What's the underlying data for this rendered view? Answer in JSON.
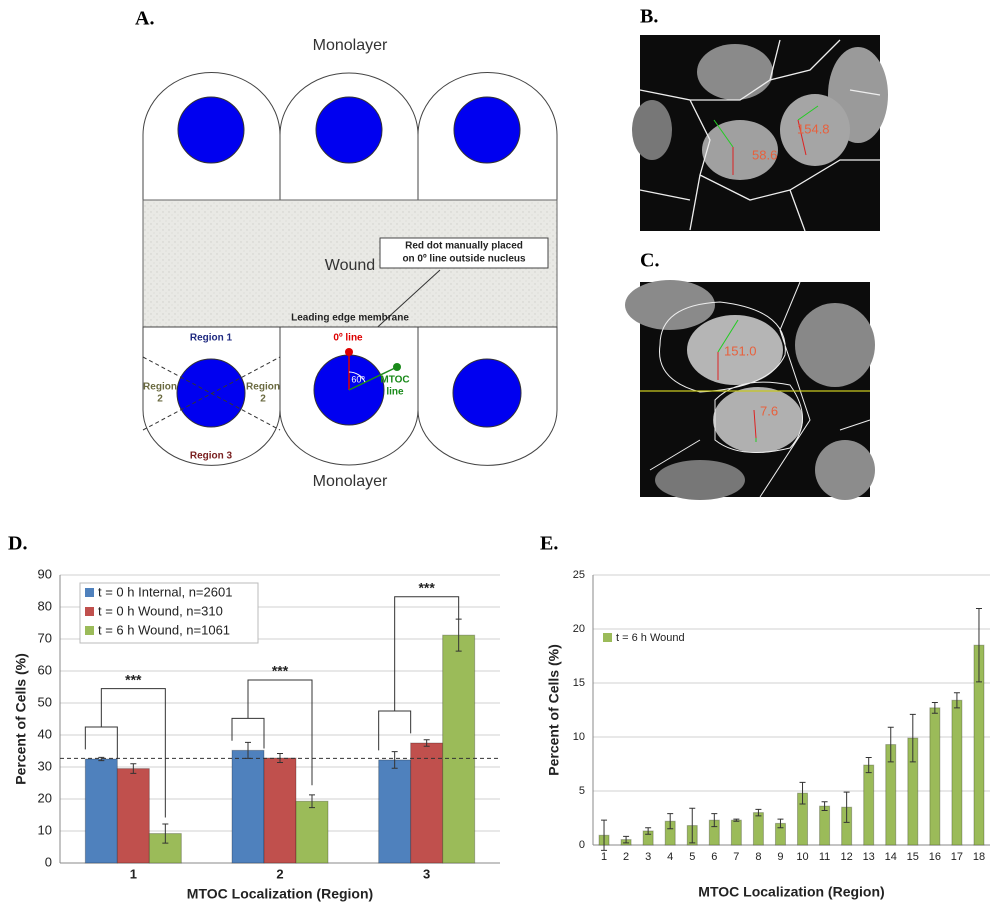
{
  "panel_labels": [
    "A.",
    "B.",
    "C.",
    "D.",
    "E."
  ],
  "diagram": {
    "top_label": "Monolayer",
    "wound_label": "Wound",
    "callout": [
      "Red dot manually placed",
      "on 0º line outside nucleus"
    ],
    "edge_label": "Leading edge membrane",
    "region_1": "Region 1",
    "region_2": [
      "Region",
      "2"
    ],
    "region_3": "Region 3",
    "zero_line": "0º line",
    "angle": "60º",
    "mtoc_line": [
      "MTOC",
      "line"
    ],
    "bottom_label": "Monolayer"
  },
  "micrographs": {
    "b_values": [
      "58.6",
      "154.8"
    ],
    "c_values": [
      "151.0",
      "7.6"
    ]
  },
  "chart_data": [
    {
      "type": "bar",
      "categories": [
        "1",
        "2",
        "3"
      ],
      "series": [
        {
          "name": "t = 0 h Internal, n=2601",
          "color": "#4f81bd",
          "values": [
            32.5,
            35.2,
            32.2
          ],
          "errors": [
            0.5,
            2.5,
            2.6
          ]
        },
        {
          "name": "t = 0 h Wound, n=310",
          "color": "#c0504d",
          "values": [
            29.5,
            32.8,
            37.5
          ],
          "errors": [
            1.5,
            1.4,
            1.0
          ]
        },
        {
          "name": "t = 6 h Wound, n=1061",
          "color": "#9bbb59",
          "values": [
            9.2,
            19.3,
            71.2
          ],
          "errors": [
            3.0,
            2.0,
            5.0
          ]
        }
      ],
      "reference_line": 32.7,
      "annotations": [
        "***",
        "***",
        "***"
      ],
      "xlabel": "MTOC Localization (Region)",
      "ylabel": "Percent of Cells (%)",
      "ylim": [
        0,
        90
      ],
      "yticks": [
        0,
        10,
        20,
        30,
        40,
        50,
        60,
        70,
        80,
        90
      ],
      "grid": true,
      "legend": "upper left"
    },
    {
      "type": "bar",
      "categories": [
        "1",
        "2",
        "3",
        "4",
        "5",
        "6",
        "7",
        "8",
        "9",
        "10",
        "11",
        "12",
        "13",
        "14",
        "15",
        "16",
        "17",
        "18"
      ],
      "series": [
        {
          "name": "t = 6 h Wound",
          "color": "#9bbb59",
          "values": [
            0.9,
            0.5,
            1.3,
            2.2,
            1.8,
            2.3,
            2.3,
            3.0,
            2.0,
            4.8,
            3.6,
            3.5,
            7.4,
            9.3,
            9.9,
            12.7,
            13.4,
            18.5
          ],
          "errors": [
            1.4,
            0.3,
            0.3,
            0.7,
            1.6,
            0.6,
            0.1,
            0.3,
            0.4,
            1.0,
            0.4,
            1.4,
            0.7,
            1.6,
            2.2,
            0.5,
            0.7,
            3.4
          ]
        }
      ],
      "xlabel": "MTOC Localization (Region)",
      "ylabel": "Percent of Cells (%)",
      "ylim": [
        0,
        25
      ],
      "yticks": [
        0,
        5,
        10,
        15,
        20,
        25
      ],
      "grid": true,
      "legend": "upper left"
    }
  ]
}
